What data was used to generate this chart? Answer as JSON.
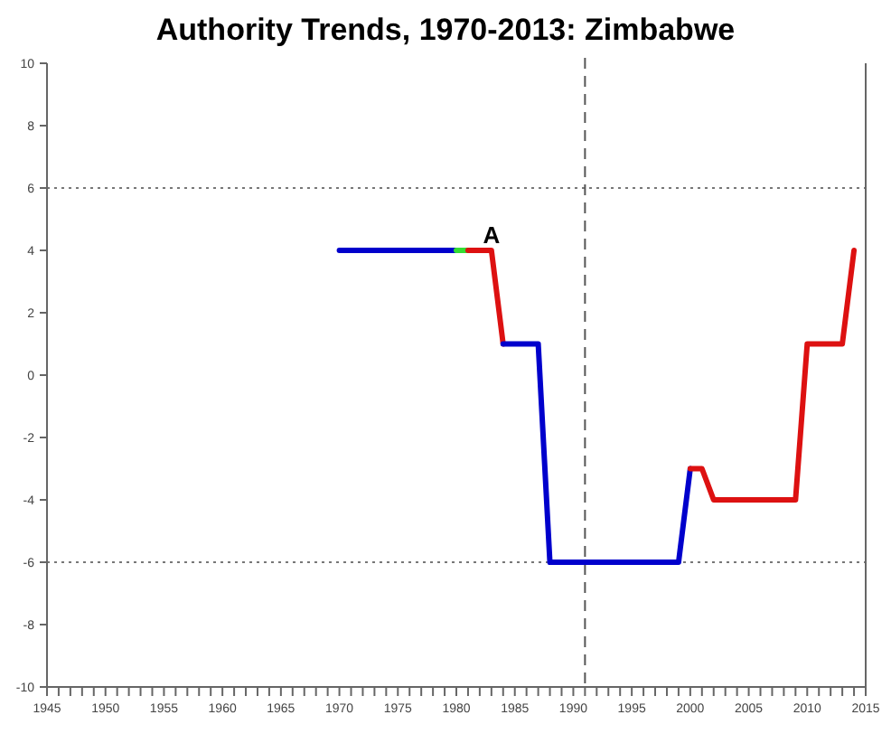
{
  "chart_data": {
    "type": "line",
    "title": "Authority Trends, 1970-2013: Zimbabwe",
    "series": [
      {
        "color": "#0000cc",
        "x": [
          1970,
          1980
        ],
        "values": [
          4,
          4
        ]
      },
      {
        "color": "#33dd33",
        "x": [
          1980,
          1981
        ],
        "values": [
          4,
          4
        ]
      },
      {
        "color": "#dd1111",
        "x": [
          1981,
          1983,
          1984
        ],
        "values": [
          4,
          4,
          1
        ]
      },
      {
        "color": "#0000cc",
        "x": [
          1984,
          1987,
          1988,
          1999,
          2000
        ],
        "values": [
          1,
          1,
          -6,
          -6,
          -3
        ]
      },
      {
        "color": "#dd1111",
        "x": [
          2000,
          2001,
          2002,
          2009,
          2010,
          2013,
          2014
        ],
        "values": [
          -3,
          -3,
          -4,
          -4,
          1,
          1,
          4
        ]
      }
    ],
    "xlim": [
      1945,
      2015
    ],
    "xticks": [
      1945,
      {
        "value": 1946,
        "label": null
      },
      {
        "value": 1947,
        "label": null
      },
      {
        "value": 1948,
        "label": null
      },
      {
        "value": 1949,
        "label": null
      },
      1950,
      {
        "value": 1951,
        "label": null
      },
      {
        "value": 1952,
        "label": null
      },
      {
        "value": 1953,
        "label": null
      },
      {
        "value": 1954,
        "label": null
      },
      1955,
      {
        "value": 1956,
        "label": null
      },
      {
        "value": 1957,
        "label": null
      },
      {
        "value": 1958,
        "label": null
      },
      {
        "value": 1959,
        "label": null
      },
      1960,
      {
        "value": 1961,
        "label": null
      },
      {
        "value": 1962,
        "label": null
      },
      {
        "value": 1963,
        "label": null
      },
      {
        "value": 1964,
        "label": null
      },
      1965,
      {
        "value": 1966,
        "label": null
      },
      {
        "value": 1967,
        "label": null
      },
      {
        "value": 1968,
        "label": null
      },
      {
        "value": 1969,
        "label": null
      },
      1970,
      {
        "value": 1971,
        "label": null
      },
      {
        "value": 1972,
        "label": null
      },
      {
        "value": 1973,
        "label": null
      },
      {
        "value": 1974,
        "label": null
      },
      1975,
      {
        "value": 1976,
        "label": null
      },
      {
        "value": 1977,
        "label": null
      },
      {
        "value": 1978,
        "label": null
      },
      {
        "value": 1979,
        "label": null
      },
      1980,
      {
        "value": 1981,
        "label": null
      },
      {
        "value": 1982,
        "label": null
      },
      {
        "value": 1983,
        "label": null
      },
      {
        "value": 1984,
        "label": null
      },
      1985,
      {
        "value": 1986,
        "label": null
      },
      {
        "value": 1987,
        "label": null
      },
      {
        "value": 1988,
        "label": null
      },
      {
        "value": 1989,
        "label": null
      },
      1990,
      {
        "value": 1991,
        "label": null
      },
      {
        "value": 1992,
        "label": null
      },
      {
        "value": 1993,
        "label": null
      },
      {
        "value": 1994,
        "label": null
      },
      1995,
      {
        "value": 1996,
        "label": null
      },
      {
        "value": 1997,
        "label": null
      },
      {
        "value": 1998,
        "label": null
      },
      {
        "value": 1999,
        "label": null
      },
      2000,
      {
        "value": 2001,
        "label": null
      },
      {
        "value": 2002,
        "label": null
      },
      {
        "value": 2003,
        "label": null
      },
      {
        "value": 2004,
        "label": null
      },
      2005,
      {
        "value": 2006,
        "label": null
      },
      {
        "value": 2007,
        "label": null
      },
      {
        "value": 2008,
        "label": null
      },
      {
        "value": 2009,
        "label": null
      },
      2010,
      {
        "value": 2011,
        "label": null
      },
      {
        "value": 2012,
        "label": null
      },
      {
        "value": 2013,
        "label": null
      },
      {
        "value": 2014,
        "label": null
      },
      2015
    ],
    "ylim": [
      -10,
      10
    ],
    "yticks": [
      -10,
      -8,
      -6,
      -4,
      -2,
      0,
      2,
      4,
      6,
      8,
      10
    ],
    "ref_lines": [
      {
        "axis": "y",
        "value": 6,
        "line_style": "dotted",
        "color": "#777777"
      },
      {
        "axis": "y",
        "value": -6,
        "line_style": "dotted",
        "color": "#777777"
      },
      {
        "axis": "x",
        "value": 1991,
        "line_style": "dashed",
        "color": "#555555"
      }
    ],
    "annotations": [
      {
        "text": "A",
        "x": 1983,
        "y": 4
      }
    ],
    "line_style": "solid",
    "marker": "none"
  }
}
